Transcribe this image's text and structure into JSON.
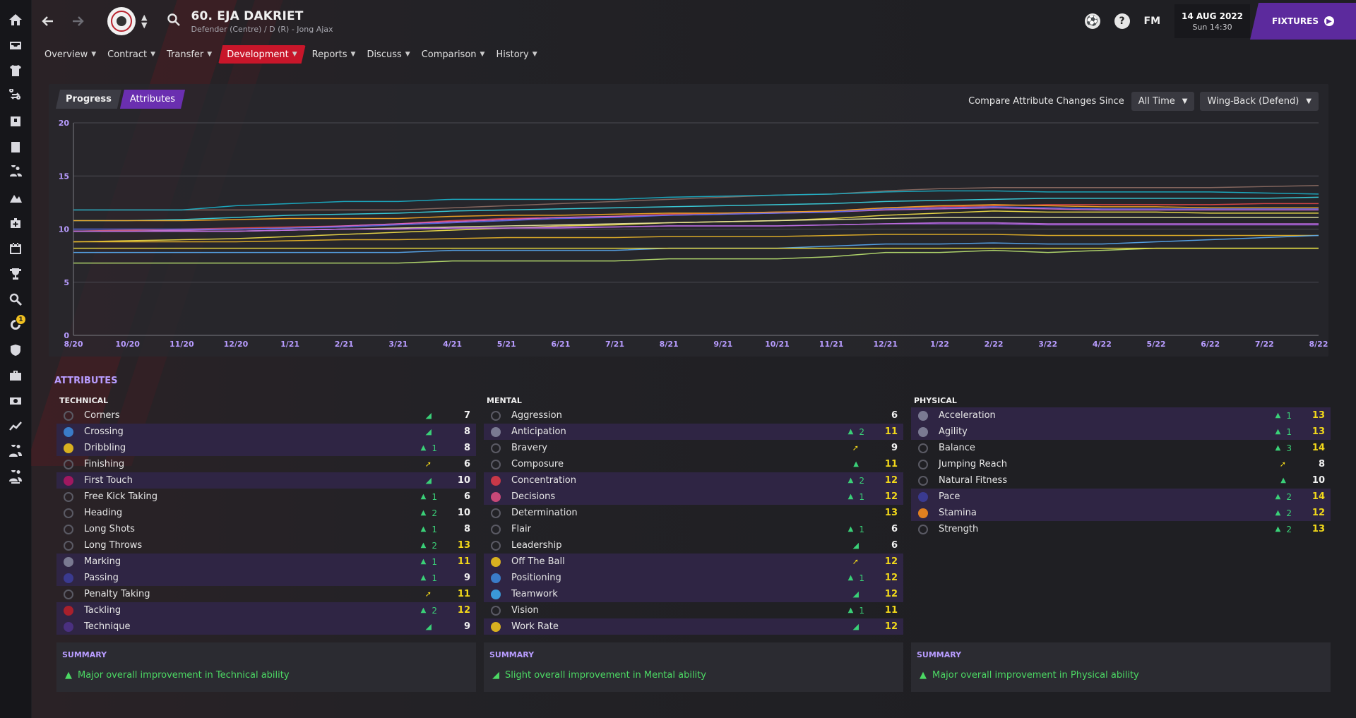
{
  "header": {
    "player_name": "60. EJA DAKRIET",
    "player_sub": "Defender (Centre) / D (R) - Jong Ajax",
    "fm_label": "FM",
    "help_label": "?",
    "date": "14 AUG 2022",
    "time": "Sun 14:30",
    "fixtures_label": "FIXTURES"
  },
  "rail_badge": "1",
  "tabs": [
    {
      "label": "Overview"
    },
    {
      "label": "Contract"
    },
    {
      "label": "Transfer"
    },
    {
      "label": "Development"
    },
    {
      "label": "Reports"
    },
    {
      "label": "Discuss"
    },
    {
      "label": "Comparison"
    },
    {
      "label": "History"
    }
  ],
  "chart_controls": {
    "progress_label": "Progress",
    "attributes_label": "Attributes",
    "compare_label": "Compare Attribute Changes Since",
    "since_value": "All Time",
    "role_value": "Wing-Back (Defend)"
  },
  "chart_data": {
    "type": "line",
    "x": [
      "8/20",
      "10/20",
      "11/20",
      "12/20",
      "1/21",
      "2/21",
      "3/21",
      "4/21",
      "5/21",
      "6/21",
      "7/21",
      "8/21",
      "9/21",
      "10/21",
      "11/21",
      "12/21",
      "1/22",
      "2/22",
      "3/22",
      "4/22",
      "5/22",
      "6/22",
      "7/22",
      "8/22"
    ],
    "ylim": [
      0,
      20
    ],
    "yticks": [
      0,
      5,
      10,
      15,
      20
    ],
    "grid": true,
    "series": [
      {
        "color": "#8a6a62",
        "values": [
          11.8,
          11.8,
          11.8,
          11.8,
          11.8,
          11.8,
          11.8,
          12,
          12.2,
          12.4,
          12.6,
          12.8,
          13,
          13.2,
          13.3,
          13.6,
          13.8,
          13.9,
          13.9,
          13.9,
          13.9,
          13.9,
          14,
          14.1
        ]
      },
      {
        "color": "#1bb0c8",
        "values": [
          11.8,
          11.8,
          11.8,
          12.2,
          12.4,
          12.6,
          12.6,
          12.8,
          12.8,
          12.8,
          12.8,
          13,
          13.1,
          13.2,
          13.3,
          13.5,
          13.6,
          13.6,
          13.5,
          13.5,
          13.5,
          13.5,
          13.4,
          13.3
        ]
      },
      {
        "color": "#3ad1e0",
        "values": [
          10.8,
          10.8,
          10.9,
          11.1,
          11.3,
          11.4,
          11.5,
          11.7,
          11.8,
          11.9,
          12,
          12.1,
          12.2,
          12.3,
          12.4,
          12.6,
          12.7,
          12.8,
          12.9,
          12.9,
          12.9,
          12.9,
          12.9,
          13
        ]
      },
      {
        "color": "#e04848",
        "values": [
          9.8,
          9.9,
          10,
          10.1,
          10.2,
          10.3,
          10.5,
          10.8,
          11,
          11.1,
          11.2,
          11.4,
          11.5,
          11.6,
          11.7,
          12,
          12.1,
          12.2,
          12.3,
          12.3,
          12.3,
          12.3,
          12.4,
          12.4
        ]
      },
      {
        "color": "#f5a623",
        "values": [
          10.8,
          10.8,
          10.8,
          10.9,
          11,
          11,
          11,
          11.2,
          11.3,
          11.3,
          11.4,
          11.5,
          11.5,
          11.6,
          11.7,
          12,
          12.2,
          12.3,
          12.2,
          12.1,
          12.1,
          12,
          12,
          12
        ]
      },
      {
        "color": "#d46ad0",
        "values": [
          9.8,
          9.8,
          9.9,
          10,
          10.1,
          10.3,
          10.5,
          10.7,
          10.9,
          11.1,
          11.2,
          11.3,
          11.4,
          11.5,
          11.6,
          11.8,
          11.9,
          12,
          11.9,
          11.8,
          11.8,
          11.8,
          11.8,
          11.8
        ]
      },
      {
        "color": "#5a6ae8",
        "values": [
          10,
          10,
          10,
          10,
          10.1,
          10.2,
          10.4,
          10.6,
          10.8,
          11,
          11.1,
          11.3,
          11.4,
          11.5,
          11.6,
          11.9,
          12,
          12.1,
          12,
          11.9,
          11.9,
          11.9,
          11.9,
          11.9
        ]
      },
      {
        "color": "#f2e04a",
        "values": [
          8.8,
          8.9,
          9,
          9.1,
          9.3,
          9.5,
          9.7,
          9.9,
          10.1,
          10.3,
          10.4,
          10.6,
          10.7,
          10.8,
          11,
          11.3,
          11.5,
          11.7,
          11.6,
          11.6,
          11.6,
          11.5,
          11.5,
          11.5
        ]
      },
      {
        "color": "#e8e6a0",
        "values": [
          9.8,
          9.8,
          9.8,
          9.8,
          9.9,
          10,
          10.1,
          10.2,
          10.3,
          10.4,
          10.5,
          10.6,
          10.7,
          10.8,
          10.9,
          11,
          11.1,
          11.1,
          11.1,
          11.1,
          11.1,
          11.1,
          11.1,
          11.1
        ]
      },
      {
        "color": "#9a58d8",
        "values": [
          9.8,
          9.8,
          9.8,
          9.8,
          9.9,
          10,
          10,
          10.1,
          10.1,
          10.2,
          10.2,
          10.3,
          10.3,
          10.3,
          10.4,
          10.5,
          10.5,
          10.5,
          10.4,
          10.4,
          10.4,
          10.4,
          10.4,
          10.4
        ]
      },
      {
        "color": "#e8b428",
        "values": [
          8.8,
          8.8,
          8.8,
          8.8,
          8.9,
          9,
          9,
          9.1,
          9.2,
          9.2,
          9.2,
          9.3,
          9.3,
          9.3,
          9.4,
          9.5,
          9.5,
          9.5,
          9.4,
          9.4,
          9.4,
          9.4,
          9.4,
          9.4
        ]
      },
      {
        "color": "#58a8f0",
        "values": [
          7.8,
          7.8,
          7.8,
          7.8,
          7.8,
          7.8,
          7.8,
          8,
          8,
          8,
          8,
          8.2,
          8.2,
          8.2,
          8.4,
          8.6,
          8.6,
          8.7,
          8.6,
          8.6,
          8.8,
          9,
          9.2,
          9.4
        ]
      },
      {
        "color": "#b8e070",
        "values": [
          6.8,
          6.8,
          6.8,
          6.8,
          6.8,
          6.8,
          6.8,
          7,
          7,
          7,
          7,
          7.2,
          7.2,
          7.2,
          7.4,
          7.8,
          7.8,
          8,
          7.8,
          8,
          8.2,
          8.2,
          8.2,
          8.2
        ]
      },
      {
        "color": "#f0e040",
        "values": [
          8.2,
          8.2,
          8.2,
          8.2,
          8.2,
          8.2,
          8.2,
          8.2,
          8.2,
          8.2,
          8.2,
          8.2,
          8.2,
          8.2,
          8.2,
          8.2,
          8.2,
          8.2,
          8.2,
          8.2,
          8.2,
          8.2,
          8.2,
          8.2
        ]
      },
      {
        "color": "#c070e0",
        "values": [
          9.8,
          9.8,
          9.8,
          9.8,
          9.9,
          10,
          10,
          10.1,
          10.1,
          10.1,
          10.2,
          10.3,
          10.3,
          10.3,
          10.4,
          10.5,
          10.6,
          10.6,
          10.5,
          10.5,
          10.5,
          10.5,
          10.5,
          10.5
        ]
      }
    ]
  },
  "attributes_title": "ATTRIBUTES",
  "columns": [
    {
      "heading": "TECHNICAL",
      "summary_head": "SUMMARY",
      "summary_text": "Major overall improvement in Technical ability",
      "rows": [
        {
          "name": "Corners",
          "val": "7",
          "delta": "",
          "arrow": "slight",
          "hl": false,
          "sym": "ring",
          "yellow": false
        },
        {
          "name": "Crossing",
          "val": "8",
          "delta": "",
          "arrow": "slight",
          "hl": true,
          "sym": "blue",
          "yellow": false
        },
        {
          "name": "Dribbling",
          "val": "8",
          "delta": "1",
          "arrow": "up",
          "hl": true,
          "sym": "gold",
          "yellow": false
        },
        {
          "name": "Finishing",
          "val": "6",
          "delta": "",
          "arrow": "flat",
          "hl": false,
          "sym": "ring",
          "yellow": false
        },
        {
          "name": "First Touch",
          "val": "10",
          "delta": "",
          "arrow": "slight",
          "hl": true,
          "sym": "magenta",
          "yellow": false
        },
        {
          "name": "Free Kick Taking",
          "val": "6",
          "delta": "1",
          "arrow": "up",
          "hl": false,
          "sym": "ring",
          "yellow": false
        },
        {
          "name": "Heading",
          "val": "10",
          "delta": "2",
          "arrow": "up",
          "hl": false,
          "sym": "ring",
          "yellow": false
        },
        {
          "name": "Long Shots",
          "val": "8",
          "delta": "1",
          "arrow": "up",
          "hl": false,
          "sym": "ring",
          "yellow": false
        },
        {
          "name": "Long Throws",
          "val": "13",
          "delta": "2",
          "arrow": "up",
          "hl": false,
          "sym": "ring",
          "yellow": true
        },
        {
          "name": "Marking",
          "val": "11",
          "delta": "1",
          "arrow": "up",
          "hl": true,
          "sym": "grey",
          "yellow": true
        },
        {
          "name": "Passing",
          "val": "9",
          "delta": "1",
          "arrow": "up",
          "hl": true,
          "sym": "navy",
          "yellow": false
        },
        {
          "name": "Penalty Taking",
          "val": "11",
          "delta": "",
          "arrow": "flat",
          "hl": false,
          "sym": "ring",
          "yellow": true
        },
        {
          "name": "Tackling",
          "val": "12",
          "delta": "2",
          "arrow": "up",
          "hl": true,
          "sym": "red",
          "yellow": true
        },
        {
          "name": "Technique",
          "val": "9",
          "delta": "",
          "arrow": "slight",
          "hl": true,
          "sym": "purple",
          "yellow": false
        }
      ]
    },
    {
      "heading": "MENTAL",
      "summary_head": "SUMMARY",
      "summary_text": "Slight overall improvement in Mental ability",
      "rows": [
        {
          "name": "Aggression",
          "val": "6",
          "delta": "",
          "arrow": "",
          "hl": false,
          "sym": "ring",
          "yellow": false
        },
        {
          "name": "Anticipation",
          "val": "11",
          "delta": "2",
          "arrow": "up",
          "hl": true,
          "sym": "grey",
          "yellow": true
        },
        {
          "name": "Bravery",
          "val": "9",
          "delta": "",
          "arrow": "flat",
          "hl": false,
          "sym": "ring",
          "yellow": false
        },
        {
          "name": "Composure",
          "val": "11",
          "delta": "",
          "arrow": "up",
          "hl": false,
          "sym": "ring",
          "yellow": true
        },
        {
          "name": "Concentration",
          "val": "12",
          "delta": "2",
          "arrow": "up",
          "hl": true,
          "sym": "redstripe",
          "yellow": true
        },
        {
          "name": "Decisions",
          "val": "12",
          "delta": "1",
          "arrow": "up",
          "hl": true,
          "sym": "pink",
          "yellow": true
        },
        {
          "name": "Determination",
          "val": "13",
          "delta": "",
          "arrow": "",
          "hl": false,
          "sym": "ring",
          "yellow": true
        },
        {
          "name": "Flair",
          "val": "6",
          "delta": "1",
          "arrow": "up",
          "hl": false,
          "sym": "ring",
          "yellow": false
        },
        {
          "name": "Leadership",
          "val": "6",
          "delta": "",
          "arrow": "slight",
          "hl": false,
          "sym": "ring",
          "yellow": false
        },
        {
          "name": "Off The Ball",
          "val": "12",
          "delta": "",
          "arrow": "flat",
          "hl": true,
          "sym": "gold",
          "yellow": true
        },
        {
          "name": "Positioning",
          "val": "12",
          "delta": "1",
          "arrow": "up",
          "hl": true,
          "sym": "blue",
          "yellow": true
        },
        {
          "name": "Teamwork",
          "val": "12",
          "delta": "",
          "arrow": "slight",
          "hl": true,
          "sym": "cyan",
          "yellow": true
        },
        {
          "name": "Vision",
          "val": "11",
          "delta": "1",
          "arrow": "up",
          "hl": false,
          "sym": "ring",
          "yellow": true
        },
        {
          "name": "Work Rate",
          "val": "12",
          "delta": "",
          "arrow": "slight",
          "hl": true,
          "sym": "gold",
          "yellow": true
        }
      ]
    },
    {
      "heading": "PHYSICAL",
      "summary_head": "SUMMARY",
      "summary_text": "Major overall improvement in Physical ability",
      "rows": [
        {
          "name": "Acceleration",
          "val": "13",
          "delta": "1",
          "arrow": "up",
          "hl": true,
          "sym": "grey",
          "yellow": true
        },
        {
          "name": "Agility",
          "val": "13",
          "delta": "1",
          "arrow": "up",
          "hl": true,
          "sym": "grey",
          "yellow": true
        },
        {
          "name": "Balance",
          "val": "14",
          "delta": "3",
          "arrow": "up",
          "hl": false,
          "sym": "ring",
          "yellow": true
        },
        {
          "name": "Jumping Reach",
          "val": "8",
          "delta": "",
          "arrow": "flat",
          "hl": false,
          "sym": "ring",
          "yellow": false
        },
        {
          "name": "Natural Fitness",
          "val": "10",
          "delta": "",
          "arrow": "up",
          "hl": false,
          "sym": "ring",
          "yellow": false
        },
        {
          "name": "Pace",
          "val": "14",
          "delta": "2",
          "arrow": "up",
          "hl": true,
          "sym": "navy",
          "yellow": true
        },
        {
          "name": "Stamina",
          "val": "12",
          "delta": "2",
          "arrow": "up",
          "hl": true,
          "sym": "orange",
          "yellow": true
        },
        {
          "name": "Strength",
          "val": "13",
          "delta": "2",
          "arrow": "up",
          "hl": false,
          "sym": "ring",
          "yellow": true
        }
      ]
    }
  ]
}
